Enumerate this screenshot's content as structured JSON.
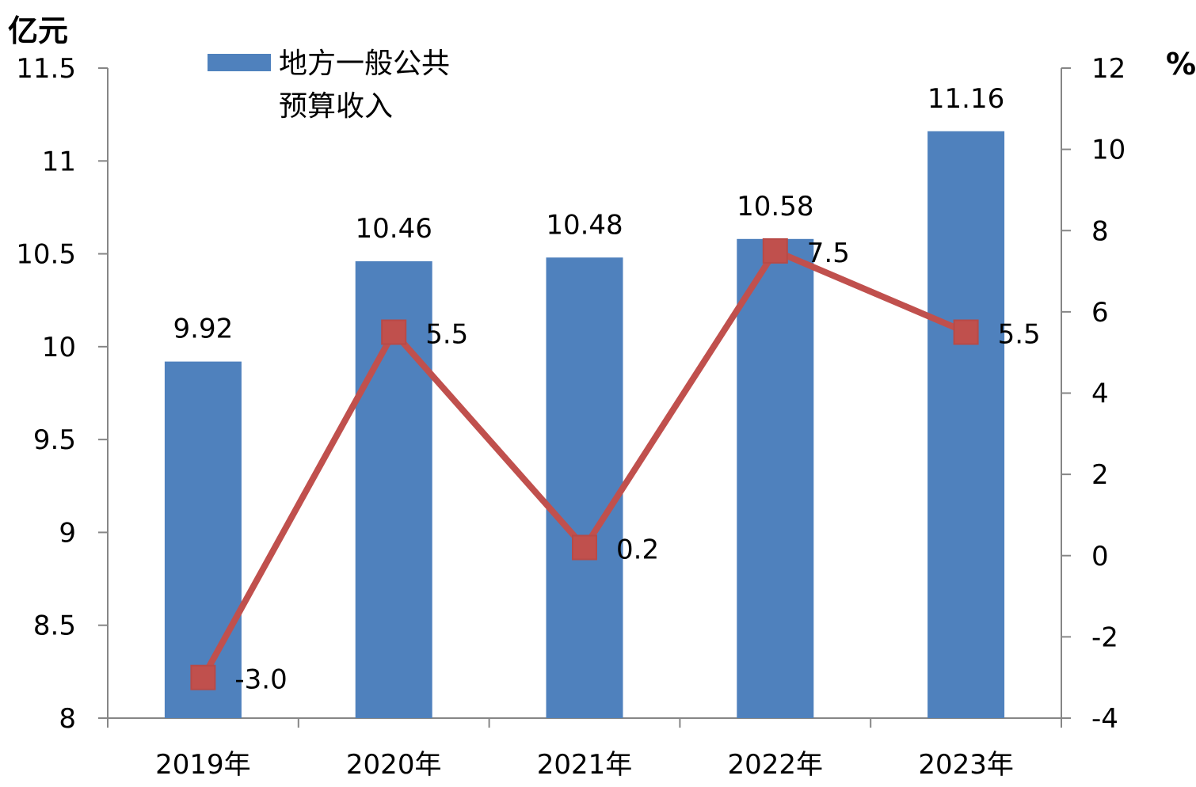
{
  "chart_data": {
    "type": "bar+line",
    "categories": [
      "2019年",
      "2020年",
      "2021年",
      "2022年",
      "2023年"
    ],
    "left_axis": {
      "unit": "亿元",
      "ylim": [
        8,
        11.5
      ],
      "ticks": [
        "8",
        "8.5",
        "9",
        "9.5",
        "10",
        "10.5",
        "11",
        "11.5"
      ]
    },
    "right_axis": {
      "unit": "%",
      "ylim": [
        -4,
        12
      ],
      "ticks": [
        "-4",
        "-2",
        "0",
        "2",
        "4",
        "6",
        "8",
        "10",
        "12"
      ]
    },
    "series": [
      {
        "name": "地方一般公共预算收入",
        "legend_lines": [
          "地方一般公共",
          "预算收入"
        ],
        "type": "bar",
        "axis": "left",
        "values": [
          9.92,
          10.46,
          10.48,
          10.58,
          11.16
        ],
        "labels": [
          "9.92",
          "10.46",
          "10.48",
          "10.58",
          "11.16"
        ],
        "color": "#4f81bd"
      },
      {
        "type": "line",
        "axis": "right",
        "values": [
          -3.0,
          5.5,
          0.2,
          7.5,
          5.5
        ],
        "labels": [
          "-3.0",
          "5.5",
          "0.2",
          "7.5",
          "5.5"
        ],
        "color": "#c0504d"
      }
    ],
    "grid": false,
    "legend_position": "top-left"
  }
}
